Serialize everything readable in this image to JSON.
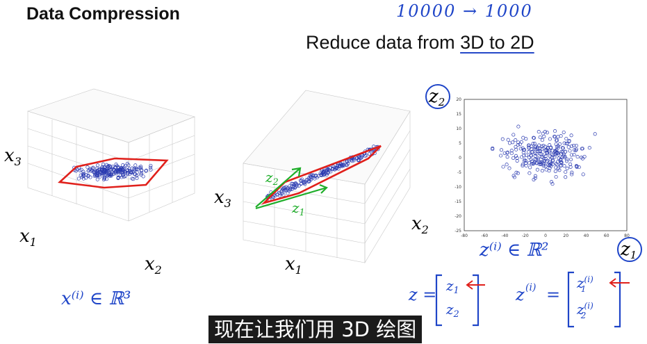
{
  "slide": {
    "title": "Data Compression",
    "subtitle_prefix": "Reduce data from ",
    "subtitle_highlight": "3D to 2D",
    "handwritten_top": "10000 → 1000",
    "handwritten_x_in_r3": "x⁽ⁱ⁾ ∈ ℝ³",
    "handwritten_z_in_r2": "z⁽ⁱ⁾ ∈ ℝ²",
    "handwritten_z_vec": "z = [z₁ ; z₂]",
    "handwritten_zi_vec": "z⁽ⁱ⁾ = [z₁⁽ⁱ⁾ ; z₂⁽ⁱ⁾]",
    "plot1_labels": {
      "x3": "x3",
      "x1": "x1",
      "x2": "x2"
    },
    "plot2_labels": {
      "x3": "x3",
      "x1": "x1",
      "x2": "x2",
      "z1": "z1",
      "z2": "z2"
    },
    "plot3_labels": {
      "z1": "z1",
      "z2": "z2"
    },
    "caption": "现在让我们用 3D 绘图"
  },
  "colors": {
    "ink": "#1f45c8",
    "highlight": "#e0201b",
    "green": "#1fae2a",
    "point": "#2a3ab0"
  },
  "chart_data": [
    {
      "type": "scatter",
      "title": "",
      "ylim": [
        -25,
        20
      ],
      "xlim": [
        -80,
        80
      ],
      "xticks": [
        "-80",
        "-60",
        "-40",
        "-20",
        "0",
        "20",
        "40",
        "60",
        "80"
      ],
      "yticks": [
        "20",
        "15",
        "10",
        "5",
        "0",
        "-5",
        "-10",
        "-15",
        "-20",
        "-25"
      ],
      "xlabel": "z1",
      "ylabel": "z2",
      "grid": false
    }
  ]
}
